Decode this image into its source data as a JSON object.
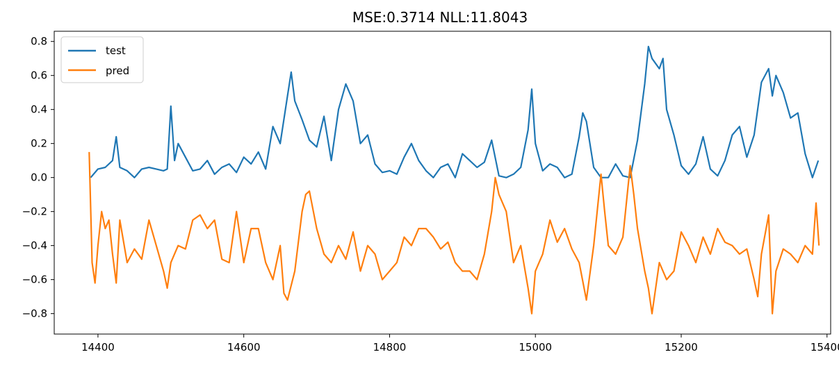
{
  "chart_data": {
    "type": "line",
    "title": "MSE:0.3714  NLL:11.8043",
    "xlabel": "",
    "ylabel": "",
    "xlim": [
      14340,
      15405
    ],
    "ylim": [
      -0.92,
      0.86
    ],
    "xticks": [
      14400,
      14600,
      14800,
      15000,
      15200,
      15400
    ],
    "yticks": [
      -0.8,
      -0.6,
      -0.4,
      -0.2,
      0.0,
      0.2,
      0.4,
      0.6,
      0.8
    ],
    "xtick_labels": [
      "14400",
      "14600",
      "14800",
      "15000",
      "15200",
      "15400"
    ],
    "ytick_labels": [
      "−0.8",
      "−0.6",
      "−0.4",
      "−0.2",
      "0.0",
      "0.2",
      "0.4",
      "0.6",
      "0.8"
    ],
    "grid": false,
    "legend": {
      "position": "upper-left"
    },
    "series": [
      {
        "name": "test",
        "color": "#1f77b4",
        "x": [
          14390,
          14400,
          14410,
          14420,
          14425,
          14430,
          14440,
          14450,
          14460,
          14470,
          14480,
          14490,
          14495,
          14500,
          14505,
          14510,
          14520,
          14530,
          14540,
          14550,
          14560,
          14570,
          14580,
          14590,
          14600,
          14610,
          14620,
          14630,
          14640,
          14650,
          14660,
          14665,
          14670,
          14680,
          14690,
          14700,
          14710,
          14720,
          14730,
          14740,
          14750,
          14760,
          14770,
          14780,
          14790,
          14800,
          14810,
          14820,
          14830,
          14840,
          14850,
          14860,
          14870,
          14880,
          14890,
          14900,
          14910,
          14920,
          14930,
          14940,
          14950,
          14960,
          14970,
          14980,
          14990,
          14995,
          15000,
          15010,
          15020,
          15030,
          15040,
          15050,
          15060,
          15065,
          15070,
          15080,
          15090,
          15100,
          15110,
          15120,
          15130,
          15140,
          15150,
          15155,
          15160,
          15170,
          15175,
          15180,
          15190,
          15200,
          15210,
          15220,
          15230,
          15240,
          15250,
          15260,
          15270,
          15280,
          15290,
          15300,
          15310,
          15320,
          15325,
          15330,
          15340,
          15350,
          15360,
          15370,
          15380,
          15388
        ],
        "values": [
          0.0,
          0.05,
          0.06,
          0.1,
          0.24,
          0.06,
          0.04,
          0.0,
          0.05,
          0.06,
          0.05,
          0.04,
          0.05,
          0.42,
          0.1,
          0.2,
          0.12,
          0.04,
          0.05,
          0.1,
          0.02,
          0.06,
          0.08,
          0.03,
          0.12,
          0.08,
          0.15,
          0.05,
          0.3,
          0.2,
          0.48,
          0.62,
          0.45,
          0.34,
          0.22,
          0.18,
          0.36,
          0.1,
          0.4,
          0.55,
          0.45,
          0.2,
          0.25,
          0.08,
          0.03,
          0.04,
          0.02,
          0.12,
          0.2,
          0.1,
          0.04,
          0.0,
          0.06,
          0.08,
          0.0,
          0.14,
          0.1,
          0.06,
          0.09,
          0.22,
          0.01,
          0.0,
          0.02,
          0.06,
          0.28,
          0.52,
          0.2,
          0.04,
          0.08,
          0.06,
          0.0,
          0.02,
          0.24,
          0.38,
          0.33,
          0.06,
          0.0,
          0.0,
          0.08,
          0.01,
          0.0,
          0.22,
          0.55,
          0.77,
          0.7,
          0.64,
          0.7,
          0.4,
          0.25,
          0.07,
          0.02,
          0.08,
          0.24,
          0.05,
          0.01,
          0.1,
          0.25,
          0.3,
          0.12,
          0.25,
          0.56,
          0.64,
          0.48,
          0.6,
          0.5,
          0.35,
          0.38,
          0.14,
          0.0,
          0.1
        ]
      },
      {
        "name": "pred",
        "color": "#ff7f0e",
        "x": [
          14388,
          14392,
          14396,
          14400,
          14405,
          14410,
          14415,
          14420,
          14425,
          14430,
          14440,
          14450,
          14460,
          14470,
          14480,
          14490,
          14495,
          14500,
          14510,
          14520,
          14530,
          14540,
          14550,
          14560,
          14570,
          14580,
          14590,
          14600,
          14610,
          14620,
          14630,
          14640,
          14650,
          14655,
          14660,
          14670,
          14680,
          14685,
          14690,
          14700,
          14710,
          14720,
          14730,
          14740,
          14750,
          14760,
          14770,
          14780,
          14790,
          14800,
          14810,
          14820,
          14830,
          14840,
          14850,
          14860,
          14870,
          14880,
          14890,
          14900,
          14910,
          14920,
          14930,
          14940,
          14945,
          14950,
          14960,
          14970,
          14980,
          14990,
          14995,
          15000,
          15010,
          15020,
          15030,
          15040,
          15050,
          15060,
          15070,
          15080,
          15090,
          15095,
          15100,
          15110,
          15120,
          15130,
          15135,
          15140,
          15150,
          15155,
          15160,
          15170,
          15180,
          15190,
          15200,
          15210,
          15220,
          15230,
          15240,
          15250,
          15260,
          15270,
          15280,
          15290,
          15300,
          15305,
          15310,
          15320,
          15325,
          15330,
          15340,
          15350,
          15360,
          15370,
          15380,
          15385,
          15389
        ],
        "values": [
          0.15,
          -0.5,
          -0.62,
          -0.4,
          -0.2,
          -0.3,
          -0.25,
          -0.45,
          -0.62,
          -0.25,
          -0.5,
          -0.42,
          -0.48,
          -0.25,
          -0.4,
          -0.55,
          -0.65,
          -0.5,
          -0.4,
          -0.42,
          -0.25,
          -0.22,
          -0.3,
          -0.25,
          -0.48,
          -0.5,
          -0.2,
          -0.5,
          -0.3,
          -0.3,
          -0.5,
          -0.6,
          -0.4,
          -0.68,
          -0.72,
          -0.55,
          -0.2,
          -0.1,
          -0.08,
          -0.3,
          -0.45,
          -0.5,
          -0.4,
          -0.48,
          -0.32,
          -0.55,
          -0.4,
          -0.45,
          -0.6,
          -0.55,
          -0.5,
          -0.35,
          -0.4,
          -0.3,
          -0.3,
          -0.35,
          -0.42,
          -0.38,
          -0.5,
          -0.55,
          -0.55,
          -0.6,
          -0.45,
          -0.2,
          0.0,
          -0.1,
          -0.2,
          -0.5,
          -0.4,
          -0.65,
          -0.8,
          -0.55,
          -0.45,
          -0.25,
          -0.38,
          -0.3,
          -0.42,
          -0.5,
          -0.72,
          -0.4,
          0.02,
          -0.2,
          -0.4,
          -0.45,
          -0.35,
          0.07,
          -0.1,
          -0.3,
          -0.55,
          -0.65,
          -0.8,
          -0.5,
          -0.6,
          -0.55,
          -0.32,
          -0.4,
          -0.5,
          -0.35,
          -0.45,
          -0.3,
          -0.38,
          -0.4,
          -0.45,
          -0.42,
          -0.6,
          -0.7,
          -0.45,
          -0.22,
          -0.8,
          -0.55,
          -0.42,
          -0.45,
          -0.5,
          -0.4,
          -0.45,
          -0.15,
          -0.4
        ]
      }
    ]
  }
}
